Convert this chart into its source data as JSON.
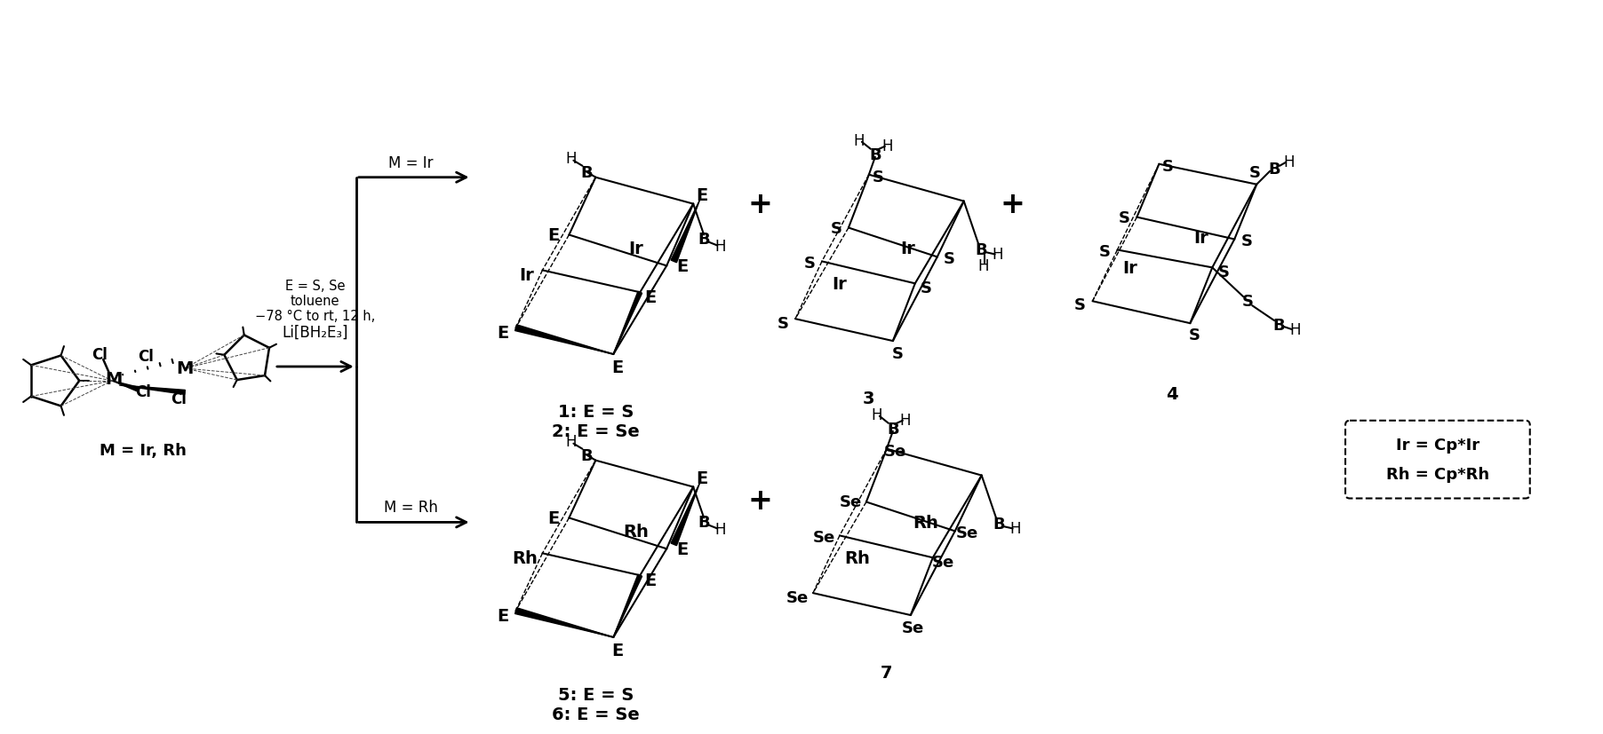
{
  "figsize": [
    18.04,
    8.28
  ],
  "dpi": 100,
  "bg_color": "#ffffff",
  "xlim": [
    0,
    1804
  ],
  "ylim": [
    828,
    0
  ],
  "labels": {
    "reactant_M": "M = Ir, Rh",
    "reagent1": "Li[BH₂E₃]",
    "reagent2": "−78 °C to rt, 12 h,",
    "reagent3": "toluene",
    "reagent4": "E = S, Se",
    "m_ir": "M = Ir",
    "m_rh": "M = Rh",
    "prod12a": "1: E = S",
    "prod12b": "2: E = Se",
    "prod3": "3",
    "prod4": "4",
    "prod56a": "5: E = S",
    "prod56b": "6: E = Se",
    "prod7": "7",
    "leg1": "Ir = Cp*Ir",
    "leg2": "Rh = Cp*Rh"
  }
}
